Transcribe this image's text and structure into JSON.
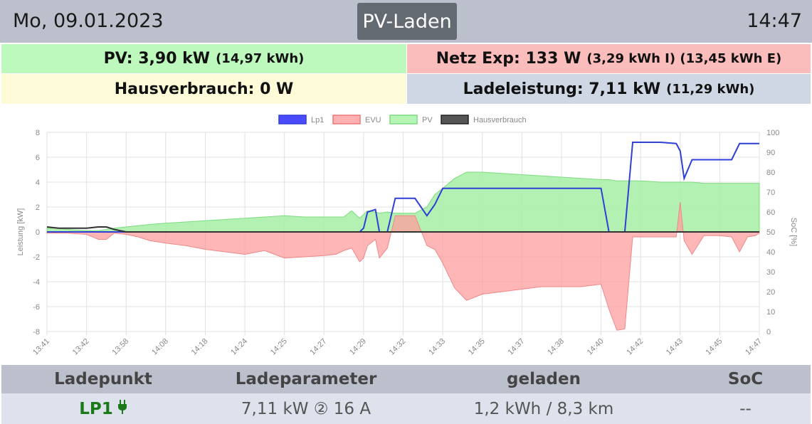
{
  "header": {
    "date": "Mo, 09.01.2023",
    "mode_button": "PV-Laden",
    "time": "14:47"
  },
  "tiles": {
    "pv_label": "PV: 3,90 kW",
    "pv_detail": "(14,97 kWh)",
    "net_label": "Netz Exp: 133 W",
    "net_detail": "(3,29 kWh I) (13,45 kWh E)",
    "house_label": "Hausverbrauch: 0 W",
    "charge_label": "Ladeleistung: 7,11 kW",
    "charge_detail": "(11,29 kWh)"
  },
  "table": {
    "headers": [
      "Ladepunkt",
      "Ladeparameter",
      "geladen",
      "SoC"
    ],
    "row": {
      "name": "LP1",
      "params": "7,11 kW ② 16 A",
      "charged": "1,2 kWh / 8,3 km",
      "soc": "--"
    }
  },
  "colors": {
    "lp1": "#2f3fd6",
    "evu_fill": "#ffaaaa",
    "pv_fill": "#aaf0aa",
    "house": "#333333"
  },
  "chart_data": {
    "type": "area",
    "legend": [
      "Lp1",
      "EVU",
      "PV",
      "Hausverbrauch"
    ],
    "legend_position": "top",
    "ylabel": "Leistung [kW]",
    "y2label": "SoC [%]",
    "ylim": [
      -8,
      8
    ],
    "y2lim": [
      0,
      100
    ],
    "yticks": [
      8,
      6,
      4,
      2,
      0,
      -2,
      -4,
      -6,
      -8
    ],
    "y2ticks": [
      100,
      90,
      80,
      70,
      60,
      50,
      40,
      30,
      20,
      10,
      0
    ],
    "xticks": [
      "13:41",
      "13:42",
      "13:58",
      "14:08",
      "14:18",
      "14:24",
      "14:25",
      "14:27",
      "14:29",
      "14:32",
      "14:33",
      "14:35",
      "14:37",
      "14:38",
      "14:40",
      "14:42",
      "14:43",
      "14:45",
      "14:47"
    ],
    "grid": true,
    "x": [
      0,
      0.3,
      0.5,
      1,
      1.3,
      1.5,
      1.7,
      2,
      2.3,
      2.6,
      3,
      3.5,
      4,
      4.5,
      5,
      5.5,
      6,
      6.5,
      7,
      7.3,
      7.5,
      7.7,
      7.9,
      8,
      8.1,
      8.3,
      8.4,
      8.6,
      8.8,
      9,
      9.3,
      9.6,
      9.8,
      10,
      10.3,
      10.6,
      11,
      11.5,
      12,
      12.5,
      13,
      13.5,
      14,
      14.2,
      14.4,
      14.6,
      14.8,
      15,
      15.5,
      15.9,
      16,
      16.1,
      16.3,
      16.6,
      17,
      17.3,
      17.5,
      17.7,
      17.9,
      18
    ],
    "series": [
      {
        "name": "Lp1",
        "values": [
          0,
          0,
          0,
          0,
          0,
          0,
          0,
          0,
          0,
          0,
          0,
          0,
          0,
          0,
          0,
          0,
          0,
          0,
          0,
          0,
          0,
          0,
          0,
          0.3,
          1.6,
          1.8,
          0,
          0,
          2.7,
          2.7,
          2.7,
          1.3,
          2.2,
          3.5,
          3.5,
          3.5,
          3.5,
          3.5,
          3.5,
          3.5,
          3.5,
          3.5,
          3.5,
          0,
          0,
          0,
          7.2,
          7.2,
          7.2,
          7.1,
          6.5,
          4.3,
          5.8,
          5.8,
          5.8,
          5.8,
          7.1,
          7.1,
          7.1,
          7.1
        ]
      },
      {
        "name": "EVU",
        "values": [
          -0.1,
          -0.1,
          -0.1,
          -0.2,
          -0.6,
          -0.6,
          -0.1,
          -0.2,
          -0.4,
          -0.7,
          -0.9,
          -1.1,
          -1.4,
          -1.6,
          -1.8,
          -1.5,
          -2.1,
          -2.0,
          -1.9,
          -1.8,
          -1.5,
          -1.3,
          -2.4,
          -2.1,
          -1.1,
          -0.6,
          -2.1,
          -1.3,
          1.3,
          1.3,
          1.3,
          -1.1,
          -1.4,
          -2.5,
          -4.5,
          -5.5,
          -5.0,
          -4.8,
          -4.6,
          -4.4,
          -4.4,
          -4.4,
          -4.2,
          -6.2,
          -7.9,
          -7.8,
          -0.4,
          -0.4,
          -0.4,
          -0.4,
          2.4,
          -0.7,
          -1.8,
          -0.3,
          -0.3,
          -0.4,
          -1.6,
          -0.4,
          -0.3,
          -0.1
        ]
      },
      {
        "name": "PV",
        "values": [
          0.3,
          0.3,
          0.2,
          0.1,
          0.1,
          0.2,
          0.3,
          0.4,
          0.5,
          0.6,
          0.7,
          0.8,
          0.9,
          1.0,
          1.1,
          1.2,
          1.3,
          1.2,
          1.2,
          1.2,
          1.2,
          1.7,
          1.1,
          1.4,
          1.7,
          1.6,
          1.5,
          1.6,
          1.5,
          1.5,
          1.5,
          2.0,
          3.0,
          3.5,
          4.3,
          4.8,
          4.8,
          4.7,
          4.6,
          4.5,
          4.4,
          4.3,
          4.2,
          4.2,
          4.1,
          4.1,
          4.1,
          4.1,
          4.0,
          4.0,
          4.0,
          4.0,
          4.0,
          3.9,
          3.9,
          3.9,
          3.9,
          3.9,
          3.9,
          3.9
        ]
      },
      {
        "name": "Hausverbrauch",
        "values": [
          0.4,
          0.3,
          0.3,
          0.3,
          0.4,
          0.4,
          0.2,
          0,
          0,
          0,
          0,
          0,
          0,
          0,
          0,
          0,
          0,
          0,
          0,
          0,
          0,
          0,
          0,
          0,
          0,
          0,
          0,
          0,
          0,
          0,
          0,
          0,
          0,
          0,
          0,
          0,
          0,
          0,
          0,
          0,
          0,
          0,
          0,
          0,
          0,
          0,
          0,
          0,
          0,
          0,
          0,
          0,
          0,
          0,
          0,
          0,
          0,
          0,
          0,
          0
        ]
      }
    ]
  }
}
